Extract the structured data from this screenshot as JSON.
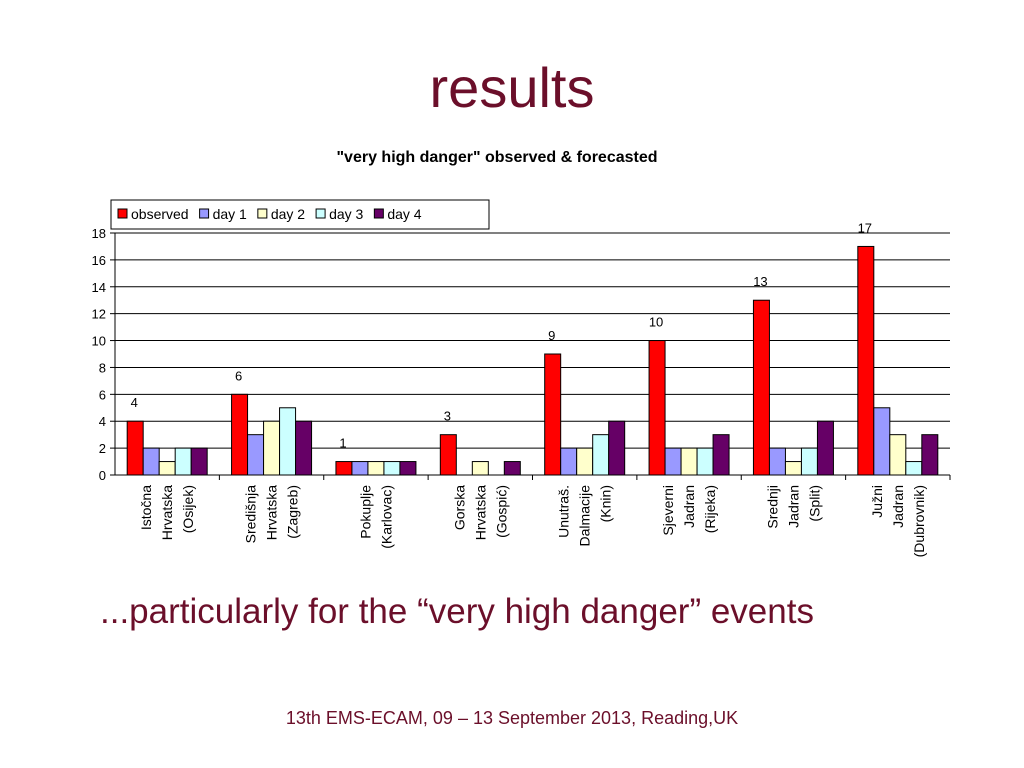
{
  "slide": {
    "title": "results",
    "caption": "...particularly for the “very high danger” events",
    "footer": "13th EMS-ECAM, 09 – 13 September 2013, Reading,UK"
  },
  "colors": {
    "slide_text": "#6b0f2a",
    "series": [
      "#ff0000",
      "#9999ff",
      "#ffffcc",
      "#ccffff",
      "#660066"
    ]
  },
  "chart_data": {
    "type": "bar",
    "title": "\"very high danger\" observed & forecasted",
    "xlabel": "",
    "ylabel": "",
    "ylim": [
      0,
      18
    ],
    "yticks": [
      0,
      2,
      4,
      6,
      8,
      10,
      12,
      14,
      16,
      18
    ],
    "grid": true,
    "legend_position": "top-left",
    "categories": [
      [
        "Istočna",
        "Hrvatska",
        "(Osijek)"
      ],
      [
        "Središnja",
        "Hrvatska",
        "(Zagreb)"
      ],
      [
        "Pokuplje",
        "(Karlovac)"
      ],
      [
        "Gorska",
        "Hrvatska",
        "(Gospić)"
      ],
      [
        "Unutraš.",
        "Dalmacije",
        "(Knin)"
      ],
      [
        "Sjeverni",
        "Jadran",
        "(Rijeka)"
      ],
      [
        "Srednji",
        "Jadran",
        "(Split)"
      ],
      [
        "Južni",
        "Jadran",
        "(Dubrovnik)"
      ]
    ],
    "series": [
      {
        "name": "observed",
        "values": [
          4,
          6,
          1,
          3,
          9,
          10,
          13,
          17
        ]
      },
      {
        "name": "day 1",
        "values": [
          2,
          3,
          1,
          0,
          2,
          2,
          2,
          5
        ]
      },
      {
        "name": "day 2",
        "values": [
          1,
          4,
          1,
          1,
          2,
          2,
          1,
          3
        ]
      },
      {
        "name": "day 3",
        "values": [
          2,
          5,
          1,
          0,
          3,
          2,
          2,
          1
        ]
      },
      {
        "name": "day 4",
        "values": [
          2,
          4,
          1,
          1,
          4,
          3,
          4,
          3
        ]
      }
    ],
    "data_labels_series": "observed"
  }
}
